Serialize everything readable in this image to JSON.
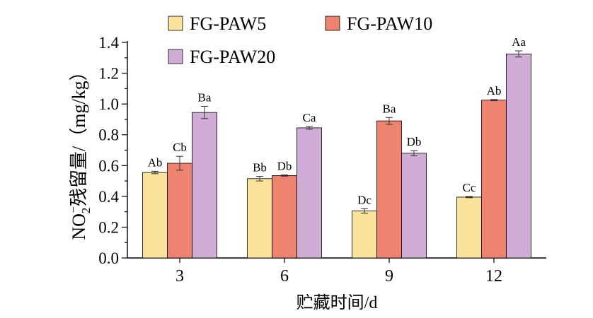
{
  "chart_data": {
    "type": "bar",
    "xlabel": "贮藏时间/d",
    "ylabel_prefix": "NO",
    "ylabel_sub": "2",
    "ylabel_sup": "−",
    "ylabel_suffix": "残留量/（mg/kg）",
    "ylim": [
      0,
      1.4
    ],
    "yticks": [
      "0.0",
      "0.2",
      "0.4",
      "0.6",
      "0.8",
      "1.0",
      "1.2",
      "1.4"
    ],
    "categories": [
      "3",
      "6",
      "9",
      "12"
    ],
    "legend_position": "top",
    "series": [
      {
        "name": "FG-PAW5",
        "color": "#fae39a",
        "values": [
          0.555,
          0.515,
          0.305,
          0.395
        ],
        "errors": [
          0.008,
          0.015,
          0.015,
          0.004
        ],
        "labels": [
          "Ab",
          "Bb",
          "Dc",
          "Cc"
        ]
      },
      {
        "name": "FG-PAW10",
        "color": "#ee8370",
        "values": [
          0.615,
          0.535,
          0.89,
          1.025
        ],
        "errors": [
          0.045,
          0.004,
          0.022,
          0.004
        ],
        "labels": [
          "Cb",
          "Db",
          "Ba",
          "Ab"
        ]
      },
      {
        "name": "FG-PAW20",
        "color": "#cfadd6",
        "values": [
          0.945,
          0.845,
          0.68,
          1.325
        ],
        "errors": [
          0.04,
          0.009,
          0.017,
          0.02
        ],
        "labels": [
          "Ba",
          "Ca",
          "Db",
          "Aa"
        ]
      }
    ]
  }
}
